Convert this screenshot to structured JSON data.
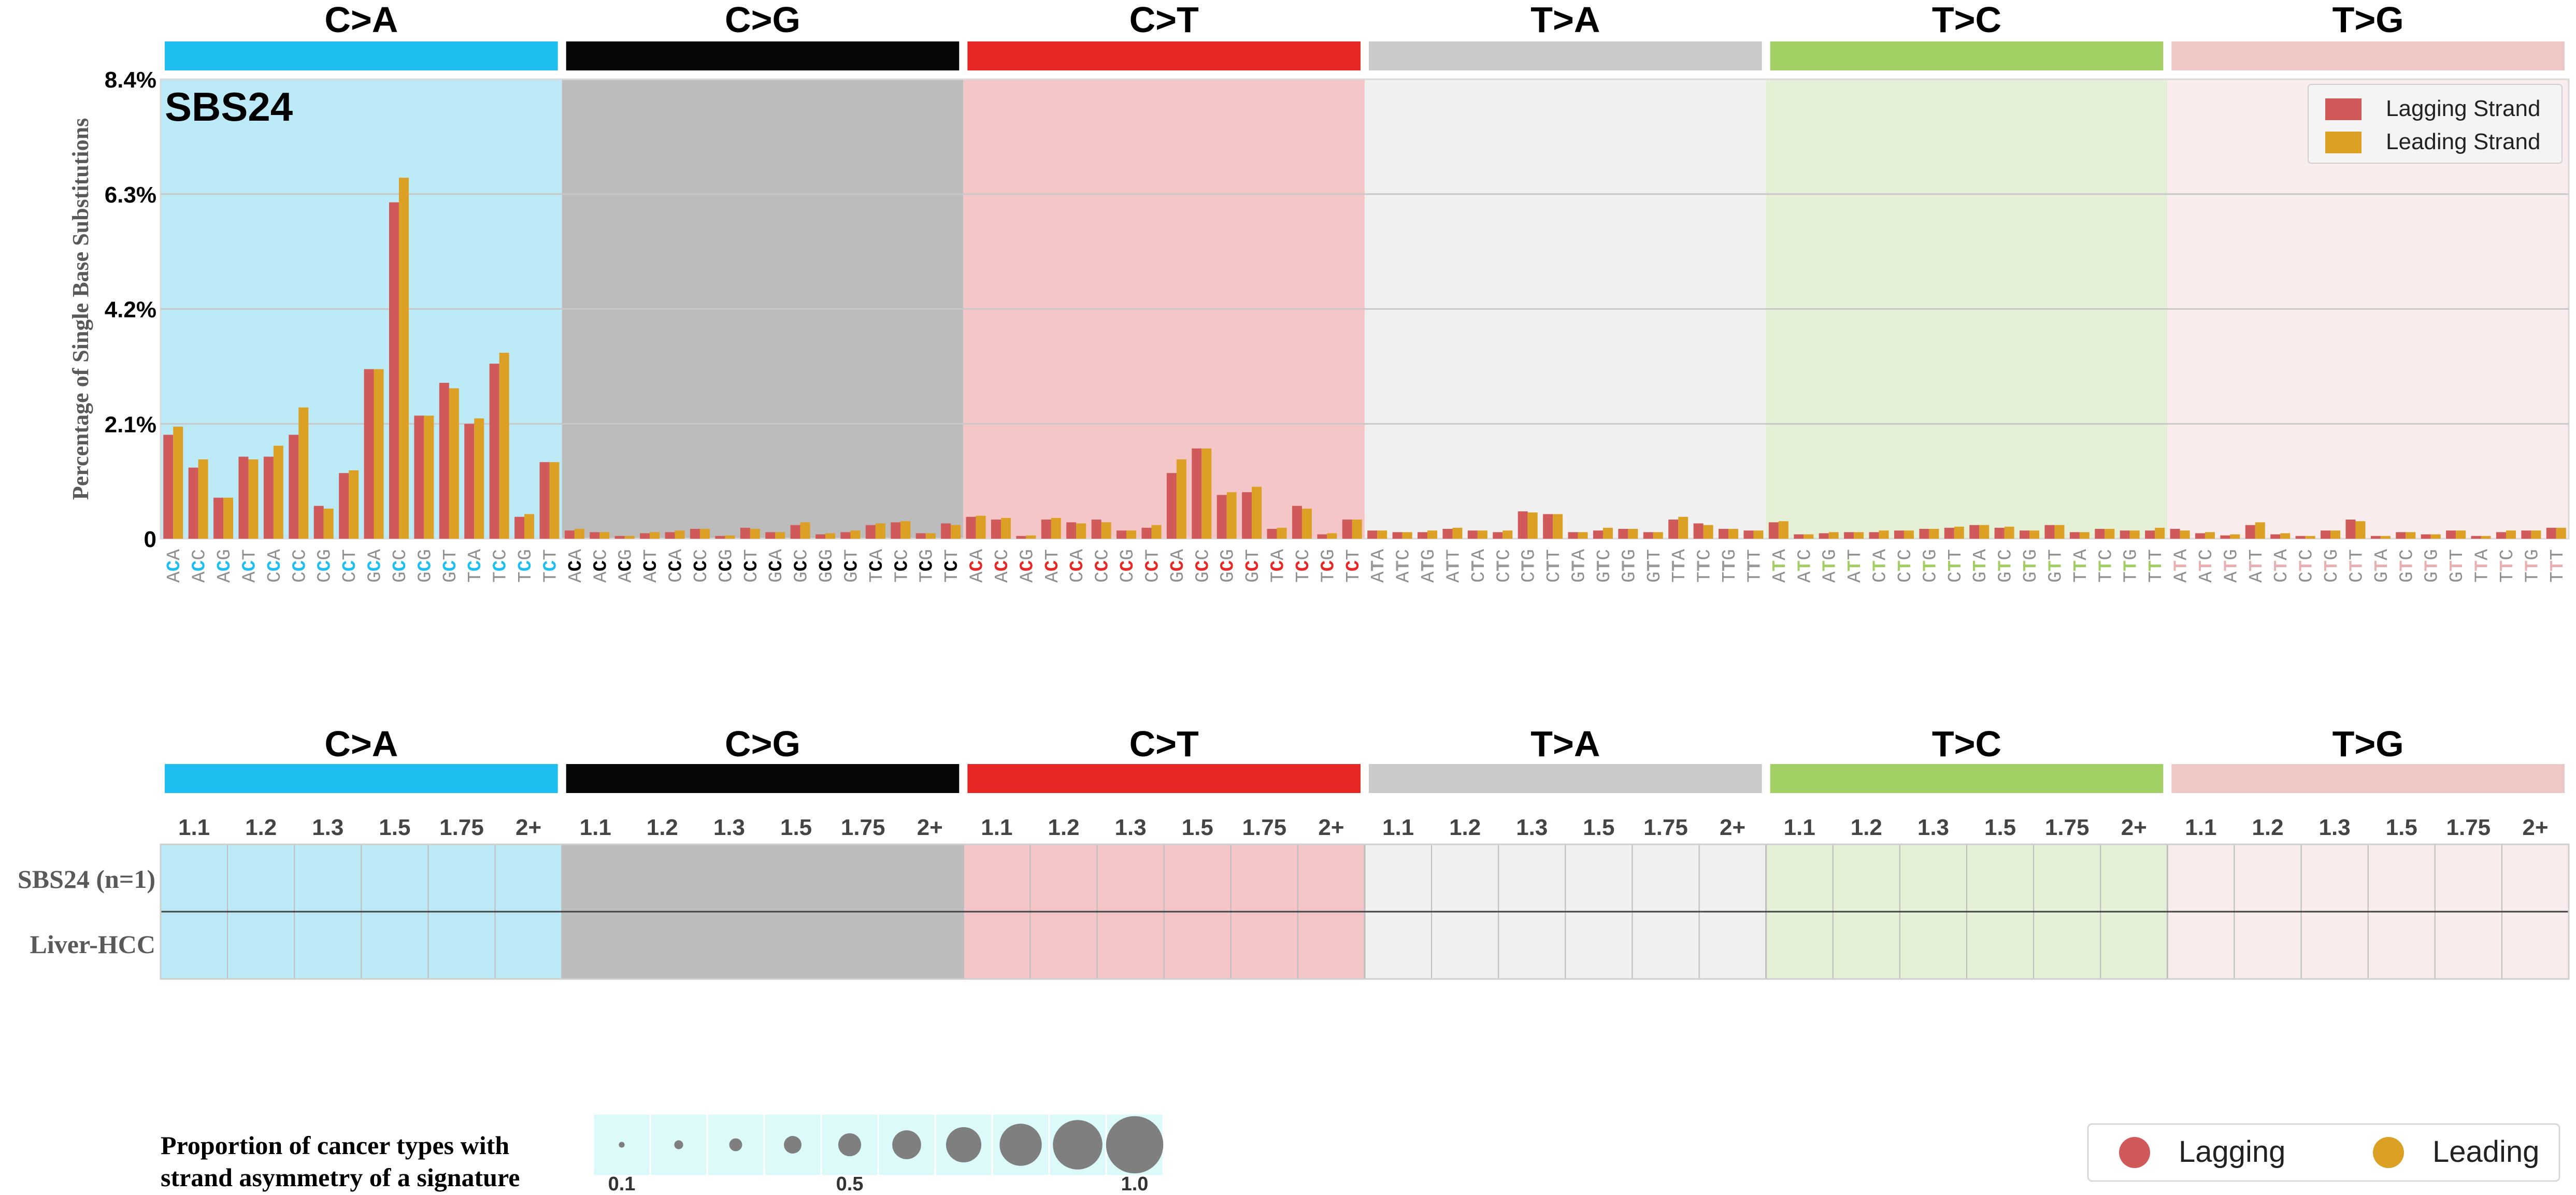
{
  "chart_data": {
    "type": "bar",
    "title": "SBS24",
    "ylabel": "Percentage of Single Base Substitutions",
    "ylim": [
      0,
      8.4
    ],
    "yticks": [
      0,
      2.1,
      4.2,
      6.3,
      8.4
    ],
    "ytick_labels": [
      "0",
      "2.1%",
      "4.2%",
      "6.3%",
      "8.4%"
    ],
    "grid": true,
    "legend_position": "top-right",
    "colors": {
      "lagging": "#d05a59",
      "leading": "#dba024",
      "grid": "#c8c8c8",
      "axis_frame": "#d9d9d9",
      "table_line": "#444444",
      "proportion_bg": "#dcfafa",
      "circle": "#7f7f7f"
    },
    "groups": [
      {
        "name": "C>A",
        "color": "#1ebff0",
        "bg": "#bdeaf7",
        "mut_color": "#1ebff0"
      },
      {
        "name": "C>G",
        "color": "#050708",
        "bg": "#bcbcbc",
        "mut_color": "#050708"
      },
      {
        "name": "C>T",
        "color": "#e62725",
        "bg": "#f5c6c7",
        "mut_color": "#e62725"
      },
      {
        "name": "T>A",
        "color": "#cbcacb",
        "bg": "#f0f0f0",
        "mut_color": "#9b9b9b"
      },
      {
        "name": "T>C",
        "color": "#a1cf64",
        "bg": "#e4f1d6",
        "mut_color": "#a1cf64"
      },
      {
        "name": "T>G",
        "color": "#edc8c5",
        "bg": "#f8ecec",
        "mut_color": "#e8b0b0"
      }
    ],
    "categories": [
      "ACA",
      "ACC",
      "ACG",
      "ACT",
      "CCA",
      "CCC",
      "CCG",
      "CCT",
      "GCA",
      "GCC",
      "GCG",
      "GCT",
      "TCA",
      "TCC",
      "TCG",
      "TCT",
      "ACA",
      "ACC",
      "ACG",
      "ACT",
      "CCA",
      "CCC",
      "CCG",
      "CCT",
      "GCA",
      "GCC",
      "GCG",
      "GCT",
      "TCA",
      "TCC",
      "TCG",
      "TCT",
      "ACA",
      "ACC",
      "ACG",
      "ACT",
      "CCA",
      "CCC",
      "CCG",
      "CCT",
      "GCA",
      "GCC",
      "GCG",
      "GCT",
      "TCA",
      "TCC",
      "TCG",
      "TCT",
      "ATA",
      "ATC",
      "ATG",
      "ATT",
      "CTA",
      "CTC",
      "CTG",
      "CTT",
      "GTA",
      "GTC",
      "GTG",
      "GTT",
      "TTA",
      "TTC",
      "TTG",
      "TTT",
      "ATA",
      "ATC",
      "ATG",
      "ATT",
      "CTA",
      "CTC",
      "CTG",
      "CTT",
      "GTA",
      "GTC",
      "GTG",
      "GTT",
      "TTA",
      "TTC",
      "TTG",
      "TTT",
      "ATA",
      "ATC",
      "ATG",
      "ATT",
      "CTA",
      "CTC",
      "CTG",
      "CTT",
      "GTA",
      "GTC",
      "GTG",
      "GTT",
      "TTA",
      "TTC",
      "TTG",
      "TTT"
    ],
    "series": [
      {
        "name": "Lagging Strand",
        "values": [
          1.9,
          1.3,
          0.75,
          1.5,
          1.5,
          1.9,
          0.6,
          1.2,
          3.1,
          6.15,
          2.25,
          2.85,
          2.1,
          3.2,
          0.4,
          1.4,
          0.15,
          0.12,
          0.05,
          0.1,
          0.12,
          0.18,
          0.05,
          0.2,
          0.12,
          0.25,
          0.08,
          0.12,
          0.25,
          0.3,
          0.1,
          0.28,
          0.4,
          0.35,
          0.05,
          0.35,
          0.3,
          0.35,
          0.15,
          0.2,
          1.2,
          1.65,
          0.8,
          0.85,
          0.18,
          0.6,
          0.08,
          0.35,
          0.15,
          0.12,
          0.12,
          0.18,
          0.15,
          0.12,
          0.5,
          0.45,
          0.12,
          0.15,
          0.18,
          0.12,
          0.35,
          0.28,
          0.18,
          0.15,
          0.3,
          0.08,
          0.1,
          0.12,
          0.12,
          0.15,
          0.18,
          0.2,
          0.25,
          0.2,
          0.15,
          0.25,
          0.12,
          0.18,
          0.15,
          0.15,
          0.18,
          0.1,
          0.06,
          0.25,
          0.08,
          0.05,
          0.15,
          0.35,
          0.05,
          0.12,
          0.08,
          0.15,
          0.05,
          0.12,
          0.15,
          0.2
        ]
      },
      {
        "name": "Leading Strand",
        "values": [
          2.05,
          1.45,
          0.75,
          1.45,
          1.7,
          2.4,
          0.55,
          1.25,
          3.1,
          6.6,
          2.25,
          2.75,
          2.2,
          3.4,
          0.45,
          1.4,
          0.18,
          0.12,
          0.05,
          0.12,
          0.15,
          0.18,
          0.06,
          0.18,
          0.12,
          0.3,
          0.1,
          0.15,
          0.28,
          0.32,
          0.1,
          0.25,
          0.42,
          0.38,
          0.06,
          0.38,
          0.28,
          0.3,
          0.15,
          0.25,
          1.45,
          1.65,
          0.85,
          0.95,
          0.2,
          0.55,
          0.1,
          0.35,
          0.15,
          0.12,
          0.15,
          0.2,
          0.15,
          0.15,
          0.48,
          0.45,
          0.12,
          0.2,
          0.18,
          0.12,
          0.4,
          0.25,
          0.18,
          0.15,
          0.32,
          0.08,
          0.12,
          0.12,
          0.15,
          0.15,
          0.18,
          0.22,
          0.25,
          0.22,
          0.15,
          0.25,
          0.12,
          0.18,
          0.15,
          0.2,
          0.15,
          0.12,
          0.08,
          0.3,
          0.1,
          0.05,
          0.15,
          0.32,
          0.05,
          0.12,
          0.08,
          0.15,
          0.05,
          0.15,
          0.15,
          0.2
        ]
      }
    ],
    "legend": [
      "Lagging Strand",
      "Leading Strand"
    ],
    "strand_table": {
      "column_labels": [
        "1.1",
        "1.2",
        "1.3",
        "1.5",
        "1.75",
        "2+"
      ],
      "row_labels": [
        "SBS24 (n=1)",
        "Liver-HCC"
      ]
    },
    "proportion_legend": {
      "title_line1": "Proportion of cancer types with",
      "title_line2": "strand asymmetry of a signature",
      "values": [
        0.1,
        0.2,
        0.3,
        0.4,
        0.5,
        0.6,
        0.7,
        0.8,
        0.9,
        1.0
      ],
      "tick_labels": [
        "0.1",
        "0.5",
        "1.0"
      ]
    },
    "strand_legend": [
      "Lagging",
      "Leading"
    ]
  }
}
